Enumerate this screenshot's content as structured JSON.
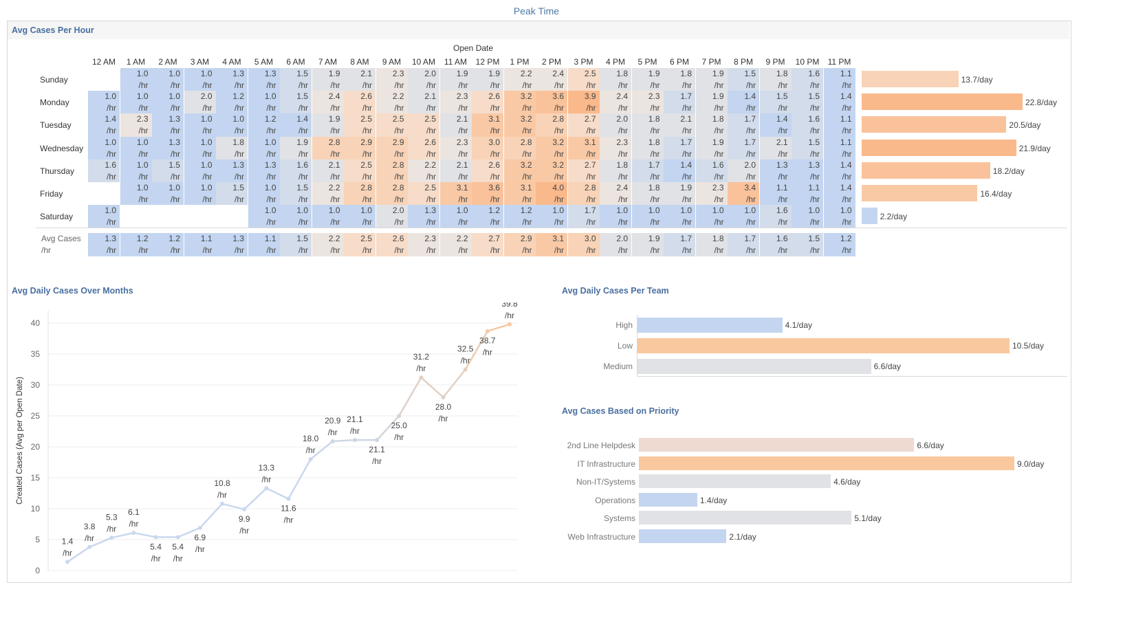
{
  "title": "Peak Time",
  "heatmap": {
    "section_title": "Avg Cases Per Hour",
    "column_axis_title": "Open Date",
    "hours": [
      "12 AM",
      "1 AM",
      "2 AM",
      "3 AM",
      "4 AM",
      "5 AM",
      "6 AM",
      "7 AM",
      "8 AM",
      "9 AM",
      "10 AM",
      "11 AM",
      "12 PM",
      "1 PM",
      "2 PM",
      "3 PM",
      "4 PM",
      "5 PM",
      "6 PM",
      "7 PM",
      "8 PM",
      "9 PM",
      "10 PM",
      "11 PM"
    ],
    "unit": "/hr",
    "rows": [
      {
        "day": "Sunday",
        "values": [
          null,
          1.0,
          1.0,
          1.0,
          1.3,
          1.3,
          1.5,
          1.9,
          2.1,
          2.3,
          2.0,
          1.9,
          1.9,
          2.2,
          2.4,
          2.5,
          1.8,
          1.9,
          1.8,
          1.9,
          1.5,
          1.8,
          1.6,
          1.1
        ],
        "total": 13.7,
        "total_label": "13.7/day"
      },
      {
        "day": "Monday",
        "values": [
          1.0,
          1.0,
          1.0,
          2.0,
          1.2,
          1.0,
          1.5,
          2.4,
          2.6,
          2.2,
          2.1,
          2.3,
          2.6,
          3.2,
          3.6,
          3.9,
          2.4,
          2.3,
          1.7,
          1.9,
          1.4,
          1.5,
          1.5,
          1.4
        ],
        "total": 22.8,
        "total_label": "22.8/day"
      },
      {
        "day": "Tuesday",
        "values": [
          1.4,
          2.3,
          1.3,
          1.0,
          1.0,
          1.2,
          1.4,
          1.9,
          2.5,
          2.5,
          2.5,
          2.1,
          3.1,
          3.2,
          2.8,
          2.7,
          2.0,
          1.8,
          2.1,
          1.8,
          1.7,
          1.4,
          1.6,
          1.1
        ],
        "total": 20.5,
        "total_label": "20.5/day"
      },
      {
        "day": "Wednesday",
        "values": [
          1.0,
          1.0,
          1.3,
          1.0,
          1.8,
          1.0,
          1.9,
          2.8,
          2.9,
          2.9,
          2.6,
          2.3,
          3.0,
          2.8,
          3.2,
          3.1,
          2.3,
          1.8,
          1.7,
          1.9,
          1.7,
          2.1,
          1.5,
          1.1
        ],
        "total": 21.9,
        "total_label": "21.9/day"
      },
      {
        "day": "Thursday",
        "values": [
          1.6,
          1.0,
          1.5,
          1.0,
          1.3,
          1.3,
          1.6,
          2.1,
          2.5,
          2.8,
          2.2,
          2.1,
          2.6,
          3.2,
          3.2,
          2.7,
          1.8,
          1.7,
          1.4,
          1.6,
          2.0,
          1.3,
          1.3,
          1.4
        ],
        "total": 18.2,
        "total_label": "18.2/day"
      },
      {
        "day": "Friday",
        "values": [
          null,
          1.0,
          1.0,
          1.0,
          1.5,
          1.0,
          1.5,
          2.2,
          2.8,
          2.8,
          2.5,
          3.1,
          3.6,
          3.1,
          4.0,
          2.8,
          2.4,
          1.8,
          1.9,
          2.3,
          3.4,
          1.1,
          1.1,
          1.4
        ],
        "total": 16.4,
        "total_label": "16.4/day"
      },
      {
        "day": "Saturday",
        "values": [
          1.0,
          null,
          null,
          null,
          null,
          1.0,
          1.0,
          1.0,
          1.0,
          2.0,
          1.3,
          1.0,
          1.2,
          1.2,
          1.0,
          1.7,
          1.0,
          1.0,
          1.0,
          1.0,
          1.0,
          1.6,
          1.0,
          1.0
        ],
        "total": 2.2,
        "total_label": "2.2/day"
      }
    ],
    "avg_row_label_line1": "Avg Cases",
    "avg_row_label_line2": "/hr",
    "avg_row": [
      1.3,
      1.2,
      1.2,
      1.1,
      1.3,
      1.1,
      1.5,
      2.2,
      2.5,
      2.6,
      2.3,
      2.2,
      2.7,
      2.9,
      3.1,
      3.0,
      2.0,
      1.9,
      1.7,
      1.8,
      1.7,
      1.6,
      1.5,
      1.2
    ]
  },
  "line_chart": {
    "section_title": "Avg Daily Cases Over Months",
    "ylabel": "Created Cases (Avg per Open Date)",
    "unit": "/hr",
    "ylim": [
      0,
      42
    ],
    "yticks": [
      0,
      5,
      10,
      15,
      20,
      25,
      30,
      35,
      40
    ],
    "values": [
      1.4,
      3.8,
      5.3,
      6.1,
      5.4,
      5.4,
      6.9,
      10.8,
      9.9,
      13.3,
      11.6,
      18.0,
      20.9,
      21.1,
      21.1,
      25.0,
      31.2,
      28.0,
      32.5,
      38.7,
      39.8
    ],
    "colors": {
      "low": "#c9d8ee",
      "high": "#f6c9a2"
    }
  },
  "team_chart": {
    "section_title": "Avg Daily Cases Per Team",
    "max": 10.5,
    "items": [
      {
        "label": "High",
        "value": 4.1,
        "value_label": "4.1/day",
        "color": "#c3d5f0"
      },
      {
        "label": "Low",
        "value": 10.5,
        "value_label": "10.5/day",
        "color": "#fac89e"
      },
      {
        "label": "Medium",
        "value": 6.6,
        "value_label": "6.6/day",
        "color": "#e1e2e6"
      }
    ]
  },
  "priority_chart": {
    "section_title": "Avg Cases Based on Priority",
    "max": 9.0,
    "items": [
      {
        "label": "2nd Line Helpdesk",
        "value": 6.6,
        "value_label": "6.6/day",
        "color": "#eedad0"
      },
      {
        "label": "IT Infrastructure",
        "value": 9.0,
        "value_label": "9.0/day",
        "color": "#fac89e"
      },
      {
        "label": "Non-IT/Systems",
        "value": 4.6,
        "value_label": "4.6/day",
        "color": "#e1e2e6"
      },
      {
        "label": "Operations",
        "value": 1.4,
        "value_label": "1.4/day",
        "color": "#c3d5f0"
      },
      {
        "label": "Systems",
        "value": 5.1,
        "value_label": "5.1/day",
        "color": "#e1e2e6"
      },
      {
        "label": "Web Infrastructure",
        "value": 2.1,
        "value_label": "2.1/day",
        "color": "#c3d5f0"
      }
    ]
  },
  "chart_data": [
    {
      "type": "heatmap",
      "title": "Avg Cases Per Hour",
      "xlabel": "Open Date",
      "note": "values in cases/hr; row totals in cases/day"
    },
    {
      "type": "line",
      "title": "Avg Daily Cases Over Months",
      "ylabel": "Created Cases (Avg per Open Date)",
      "ylim": [
        0,
        42
      ],
      "values": [
        1.4,
        3.8,
        5.3,
        6.1,
        5.4,
        5.4,
        6.9,
        10.8,
        9.9,
        13.3,
        11.6,
        18.0,
        20.9,
        21.1,
        21.1,
        25.0,
        31.2,
        28.0,
        32.5,
        38.7,
        39.8
      ]
    },
    {
      "type": "bar",
      "title": "Avg Daily Cases Per Team",
      "categories": [
        "High",
        "Low",
        "Medium"
      ],
      "values": [
        4.1,
        10.5,
        6.6
      ]
    },
    {
      "type": "bar",
      "title": "Avg Cases Based on Priority",
      "categories": [
        "2nd Line Helpdesk",
        "IT Infrastructure",
        "Non-IT/Systems",
        "Operations",
        "Systems",
        "Web Infrastructure"
      ],
      "values": [
        6.6,
        9.0,
        4.6,
        1.4,
        5.1,
        2.1
      ]
    }
  ]
}
